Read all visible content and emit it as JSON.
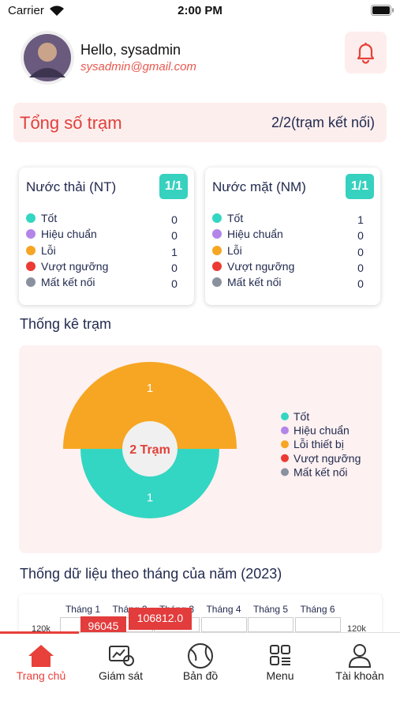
{
  "status_bar": {
    "carrier": "Carrier",
    "time": "2:00 PM"
  },
  "header": {
    "greeting": "Hello, sysadmin",
    "email": "sysadmin@gmail.com"
  },
  "summary": {
    "title": "Tổng số trạm",
    "value": "2/2(trạm kết nối)"
  },
  "stations": [
    {
      "name": "Nước thải (NT)",
      "badge": "1/1",
      "statuses": [
        {
          "label": "Tốt",
          "count": 0,
          "color": "#33d6c2"
        },
        {
          "label": "Hiệu chuẩn",
          "count": 0,
          "color": "#b385e8"
        },
        {
          "label": "Lỗi",
          "count": 1,
          "color": "#f6a623"
        },
        {
          "label": "Vượt ngưỡng",
          "count": 0,
          "color": "#ec3a34"
        },
        {
          "label": "Mất kết nối",
          "count": 0,
          "color": "#8a919e"
        }
      ]
    },
    {
      "name": "Nước mặt (NM)",
      "badge": "1/1",
      "statuses": [
        {
          "label": "Tốt",
          "count": 1,
          "color": "#33d6c2"
        },
        {
          "label": "Hiệu chuẩn",
          "count": 0,
          "color": "#b385e8"
        },
        {
          "label": "Lỗi",
          "count": 0,
          "color": "#f6a623"
        },
        {
          "label": "Vượt ngưỡng",
          "count": 0,
          "color": "#ec3a34"
        },
        {
          "label": "Mất kết nối",
          "count": 0,
          "color": "#8a919e"
        }
      ]
    }
  ],
  "stats": {
    "title": "Thống kê trạm",
    "center_label": "2 Trạm",
    "segments": [
      {
        "value": 1,
        "color": "#f6a623"
      },
      {
        "value": 1,
        "color": "#33d6c2"
      }
    ],
    "legend": [
      {
        "label": "Tốt",
        "color": "#33d6c2"
      },
      {
        "label": "Hiệu chuẩn",
        "color": "#b385e8"
      },
      {
        "label": "Lỗi thiết bị",
        "color": "#f6a623"
      },
      {
        "label": "Vượt ngưỡng",
        "color": "#ec3a34"
      },
      {
        "label": "Mất kết nối",
        "color": "#8a919e"
      }
    ]
  },
  "monthly": {
    "title": "Thống dữ liệu theo tháng của năm (2023)",
    "months": [
      "Tháng 1",
      "Tháng 2",
      "Tháng 3",
      "Tháng 4",
      "Tháng 5",
      "Tháng 6"
    ],
    "axis_left": "120k",
    "axis_right": "120k",
    "tooltips": [
      "96045",
      "106812.0"
    ]
  },
  "nav": [
    "Trang chủ",
    "Giám sát",
    "Bản đồ",
    "Menu",
    "Tài khoản"
  ]
}
